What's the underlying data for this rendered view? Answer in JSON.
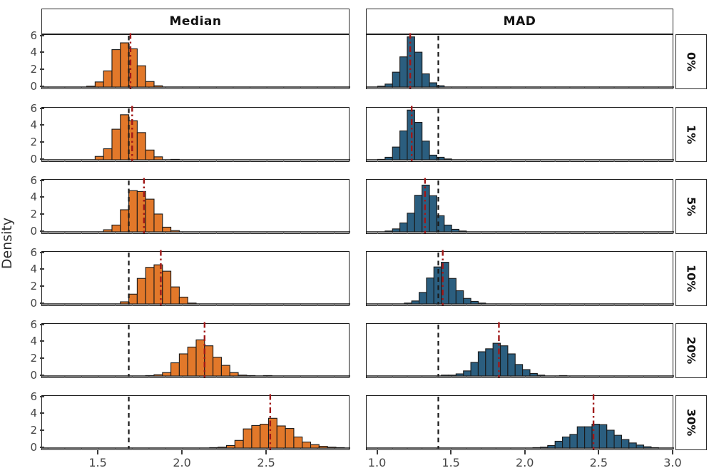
{
  "colors": {
    "median_fill": "#E2782A",
    "mad_fill": "#2B5E7F",
    "bar_edge": "#1a1a1a",
    "dashed_line": "#1a1a1a",
    "dashdot_line": "#A01818",
    "axis_line": "#1a1a1a",
    "minor_tick": "#909090",
    "tick_label": "#454545"
  },
  "chart_data": {
    "type": "histogram",
    "title": "",
    "columns": [
      "Median",
      "MAD"
    ],
    "rows": [
      "0%",
      "1%",
      "5%",
      "10%",
      "20%",
      "30%"
    ],
    "ylabel": "Density",
    "ylim": [
      0,
      6
    ],
    "yticks": [
      "0",
      "2",
      "4",
      "6"
    ],
    "ytick_values": [
      0,
      2,
      4,
      6
    ],
    "bin_width": 0.05,
    "x_axis": {
      "Median": {
        "lim": [
          1.165,
          2.995
        ],
        "ticks": [
          "1.5",
          "2.0",
          "2.5"
        ],
        "tick_values": [
          1.5,
          2.0,
          2.5
        ],
        "minor_step": 0.1
      },
      "MAD": {
        "lim": [
          0.925,
          3.005
        ],
        "ticks": [
          "1.0",
          "1.5",
          "2.0",
          "2.5",
          "3.0"
        ],
        "tick_values": [
          1.0,
          1.5,
          2.0,
          2.5,
          3.0
        ],
        "minor_step": 0.1
      }
    },
    "panels": [
      {
        "column": "Median",
        "row": "0%",
        "bin_start": 1.43,
        "heights": [
          0.1,
          0.6,
          1.9,
          4.4,
          5.2,
          4.5,
          2.5,
          0.65,
          0.15
        ],
        "vline_dashed": 1.68,
        "vline_dashdot": 1.69
      },
      {
        "column": "MAD",
        "row": "0%",
        "bin_start": 1.0,
        "heights": [
          0.1,
          0.35,
          1.75,
          3.55,
          5.9,
          4.1,
          1.55,
          0.5,
          0.15
        ],
        "vline_dashed": 1.41,
        "vline_dashdot": 1.22
      },
      {
        "column": "Median",
        "row": "1%",
        "bin_start": 1.48,
        "heights": [
          0.4,
          1.3,
          3.6,
          5.3,
          4.6,
          3.2,
          1.15,
          0.35,
          0,
          0.05
        ],
        "vline_dashed": 1.68,
        "vline_dashdot": 1.7
      },
      {
        "column": "MAD",
        "row": "1%",
        "bin_start": 1.0,
        "heights": [
          0.05,
          0.3,
          1.5,
          3.4,
          5.85,
          4.4,
          2.2,
          0.55,
          0.3,
          0.1
        ],
        "vline_dashed": 1.41,
        "vline_dashdot": 1.23
      },
      {
        "column": "Median",
        "row": "5%",
        "bin_start": 1.53,
        "heights": [
          0.25,
          0.8,
          2.6,
          4.85,
          4.75,
          3.85,
          2.1,
          0.55,
          0.15
        ],
        "vline_dashed": 1.68,
        "vline_dashdot": 1.77
      },
      {
        "column": "MAD",
        "row": "5%",
        "bin_start": 1.05,
        "heights": [
          0.1,
          0.35,
          1.05,
          2.2,
          4.3,
          5.5,
          4.25,
          1.9,
          0.8,
          0.3,
          0.1
        ],
        "vline_dashed": 1.41,
        "vline_dashdot": 1.32
      },
      {
        "column": "Median",
        "row": "10%",
        "bin_start": 1.63,
        "heights": [
          0.25,
          1.15,
          3.0,
          4.3,
          4.6,
          3.85,
          2.0,
          0.8,
          0.1
        ],
        "vline_dashed": 1.68,
        "vline_dashdot": 1.87
      },
      {
        "column": "MAD",
        "row": "10%",
        "bin_start": 1.18,
        "heights": [
          0.1,
          0.35,
          1.35,
          3.05,
          4.35,
          4.9,
          3.0,
          1.55,
          0.65,
          0.3,
          0.1
        ],
        "vline_dashed": 1.41,
        "vline_dashdot": 1.44
      },
      {
        "column": "Median",
        "row": "20%",
        "bin_start": 1.78,
        "heights": [
          0.05,
          0.15,
          0.4,
          1.55,
          2.6,
          3.4,
          4.25,
          3.55,
          2.2,
          1.25,
          0.4,
          0.1,
          0.05,
          0,
          0.05
        ],
        "vline_dashed": 1.68,
        "vline_dashdot": 2.13
      },
      {
        "column": "MAD",
        "row": "20%",
        "bin_start": 1.43,
        "heights": [
          0.1,
          0.1,
          0.25,
          0.6,
          1.6,
          2.85,
          3.2,
          3.85,
          3.55,
          2.6,
          1.35,
          0.75,
          0.3,
          0.1,
          0,
          0,
          0.05
        ],
        "vline_dashed": 1.41,
        "vline_dashdot": 1.82
      },
      {
        "column": "Median",
        "row": "30%",
        "bin_start": 2.16,
        "heights": [
          0.05,
          0.1,
          0.3,
          0.9,
          2.25,
          2.65,
          2.8,
          3.5,
          2.6,
          2.3,
          1.3,
          0.7,
          0.4,
          0.2,
          0.1,
          0.05
        ],
        "vline_dashed": 1.68,
        "vline_dashdot": 2.52
      },
      {
        "column": "MAD",
        "row": "30%",
        "bin_start": 2.05,
        "heights": [
          0.05,
          0.1,
          0.3,
          0.8,
          1.3,
          1.6,
          2.5,
          2.5,
          2.8,
          2.75,
          2.1,
          1.5,
          1.0,
          0.6,
          0.35,
          0.15,
          0.05
        ],
        "vline_dashed": 1.41,
        "vline_dashdot": 2.46
      }
    ]
  }
}
